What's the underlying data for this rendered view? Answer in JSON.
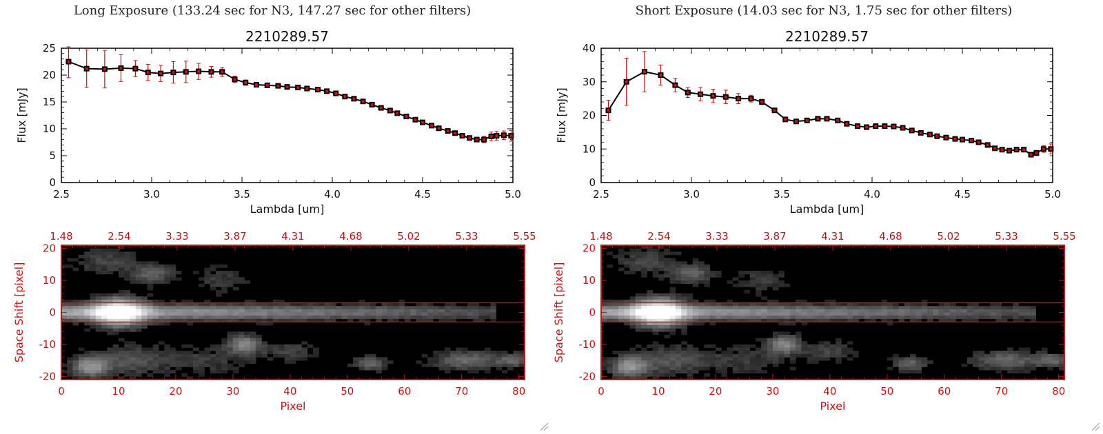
{
  "panels": [
    {
      "title": "Long Exposure (133.24 sec for N3, 147.27 sec for other filters)",
      "spectrum": {
        "plot_title": "2210289.57",
        "xlabel": "Lambda [um]",
        "ylabel": "Flux [mJy]",
        "xlim": [
          2.5,
          5.0
        ],
        "ylim": [
          0,
          25
        ],
        "xticks": [
          "2.5",
          "3.0",
          "3.5",
          "4.0",
          "4.5",
          "5.0"
        ],
        "yticks": [
          "0",
          "5",
          "10",
          "15",
          "20",
          "25"
        ]
      },
      "image": {
        "xlabel": "Pixel",
        "ylabel": "Space Shift [pixel]",
        "xticks": [
          "0",
          "10",
          "20",
          "30",
          "40",
          "50",
          "60",
          "70",
          "80"
        ],
        "yticks": [
          "20",
          "10",
          "0",
          "-10",
          "-20"
        ],
        "top_ticks": [
          "1.48",
          "2.54",
          "3.33",
          "3.87",
          "4.31",
          "4.68",
          "5.02",
          "5.33",
          "5.55"
        ]
      }
    },
    {
      "title": "Short Exposure (14.03 sec for N3, 1.75 sec for other filters)",
      "spectrum": {
        "plot_title": "2210289.57",
        "xlabel": "Lambda [um]",
        "ylabel": "Flux [mJy]",
        "xlim": [
          2.5,
          5.0
        ],
        "ylim": [
          0,
          40
        ],
        "xticks": [
          "2.5",
          "3.0",
          "3.5",
          "4.0",
          "4.5",
          "5.0"
        ],
        "yticks": [
          "0",
          "10",
          "20",
          "30",
          "40"
        ]
      },
      "image": {
        "xlabel": "Pixel",
        "ylabel": "Space Shift [pixel]",
        "xticks": [
          "0",
          "10",
          "20",
          "30",
          "40",
          "50",
          "60",
          "70",
          "80"
        ],
        "yticks": [
          "20",
          "10",
          "0",
          "-10",
          "-20"
        ],
        "top_ticks": [
          "1.48",
          "2.54",
          "3.33",
          "3.87",
          "4.31",
          "4.68",
          "5.02",
          "5.33",
          "5.55"
        ]
      }
    }
  ],
  "chart_data": [
    {
      "type": "scatter",
      "title": "2210289.57",
      "xlabel": "Lambda [um]",
      "ylabel": "Flux [mJy]",
      "xlim": [
        2.5,
        5.0
      ],
      "ylim": [
        0,
        25
      ],
      "marker_color": "#d01010",
      "line_color": "#000000",
      "x": [
        2.54,
        2.64,
        2.74,
        2.83,
        2.91,
        2.98,
        3.05,
        3.12,
        3.19,
        3.26,
        3.33,
        3.39,
        3.46,
        3.52,
        3.58,
        3.64,
        3.7,
        3.75,
        3.81,
        3.86,
        3.92,
        3.97,
        4.02,
        4.07,
        4.12,
        4.17,
        4.22,
        4.27,
        4.32,
        4.36,
        4.41,
        4.46,
        4.5,
        4.55,
        4.59,
        4.64,
        4.68,
        4.72,
        4.76,
        4.8,
        4.84,
        4.88,
        4.91,
        4.95,
        4.99
      ],
      "y": [
        22.5,
        21.2,
        21.1,
        21.3,
        21.2,
        20.5,
        20.3,
        20.5,
        20.6,
        20.7,
        20.6,
        20.6,
        19.2,
        18.6,
        18.2,
        18.1,
        18.0,
        17.8,
        17.7,
        17.5,
        17.3,
        17.0,
        16.6,
        16.0,
        15.6,
        15.1,
        14.5,
        13.9,
        13.4,
        12.9,
        12.3,
        11.7,
        11.2,
        10.6,
        10.1,
        9.6,
        9.2,
        8.7,
        8.3,
        8.0,
        8.0,
        8.6,
        8.7,
        8.8,
        8.7
      ],
      "yerr": [
        3.0,
        3.5,
        3.5,
        2.5,
        1.5,
        1.5,
        1.5,
        2.0,
        2.0,
        1.5,
        1.0,
        0.8,
        0.6,
        0.5,
        0.4,
        0.4,
        0.4,
        0.4,
        0.4,
        0.4,
        0.4,
        0.4,
        0.4,
        0.4,
        0.4,
        0.4,
        0.4,
        0.4,
        0.4,
        0.4,
        0.4,
        0.4,
        0.4,
        0.4,
        0.4,
        0.4,
        0.4,
        0.4,
        0.4,
        0.4,
        0.6,
        0.8,
        0.8,
        0.8,
        1.0
      ]
    },
    {
      "type": "scatter",
      "title": "2210289.57",
      "xlabel": "Lambda [um]",
      "ylabel": "Flux [mJy]",
      "xlim": [
        2.5,
        5.0
      ],
      "ylim": [
        0,
        40
      ],
      "marker_color": "#d01010",
      "line_color": "#000000",
      "x": [
        2.54,
        2.64,
        2.74,
        2.83,
        2.91,
        2.98,
        3.05,
        3.12,
        3.19,
        3.26,
        3.33,
        3.39,
        3.46,
        3.52,
        3.58,
        3.64,
        3.7,
        3.75,
        3.81,
        3.86,
        3.92,
        3.97,
        4.02,
        4.07,
        4.12,
        4.17,
        4.22,
        4.27,
        4.32,
        4.36,
        4.41,
        4.46,
        4.5,
        4.55,
        4.59,
        4.64,
        4.68,
        4.72,
        4.76,
        4.8,
        4.84,
        4.88,
        4.91,
        4.95,
        4.99
      ],
      "y": [
        21.5,
        30.0,
        33.0,
        32.0,
        29.0,
        26.8,
        26.3,
        25.8,
        25.5,
        25.0,
        25.0,
        24.0,
        21.5,
        18.8,
        18.2,
        18.5,
        19.0,
        19.0,
        18.5,
        17.5,
        16.8,
        16.5,
        16.8,
        16.8,
        16.7,
        16.3,
        15.5,
        14.8,
        14.3,
        13.8,
        13.4,
        13.0,
        12.8,
        12.5,
        12.0,
        11.2,
        10.2,
        9.8,
        9.5,
        9.8,
        9.8,
        8.3,
        8.8,
        10.0,
        10.0
      ],
      "yerr": [
        3.0,
        7.0,
        6.0,
        3.0,
        2.0,
        1.5,
        2.0,
        2.0,
        2.0,
        1.5,
        1.0,
        0.8,
        0.6,
        0.6,
        0.5,
        0.5,
        0.5,
        0.5,
        0.5,
        0.5,
        0.5,
        0.5,
        0.5,
        0.5,
        0.5,
        0.5,
        0.5,
        0.5,
        0.5,
        0.5,
        0.5,
        0.5,
        0.5,
        0.5,
        0.5,
        0.5,
        0.5,
        0.5,
        0.5,
        0.5,
        0.5,
        0.7,
        0.8,
        1.0,
        1.5
      ]
    },
    {
      "type": "heatmap",
      "xlabel": "Pixel",
      "ylabel": "Space Shift [pixel]",
      "xlim": [
        0,
        81
      ],
      "ylim": [
        -21,
        21
      ],
      "colormap": "grayscale",
      "aperture_lines": [
        3,
        -3
      ],
      "aperture_color": "#d01010",
      "top_axis_ticks": [
        "1.48",
        "2.54",
        "3.33",
        "3.87",
        "4.31",
        "4.68",
        "5.02",
        "5.33",
        "5.55"
      ]
    },
    {
      "type": "heatmap",
      "xlabel": "Pixel",
      "ylabel": "Space Shift [pixel]",
      "xlim": [
        0,
        81
      ],
      "ylim": [
        -21,
        21
      ],
      "colormap": "grayscale",
      "aperture_lines": [
        3,
        -3
      ],
      "aperture_color": "#d01010",
      "top_axis_ticks": [
        "1.48",
        "2.54",
        "3.33",
        "3.87",
        "4.31",
        "4.68",
        "5.02",
        "5.33",
        "5.55"
      ]
    }
  ]
}
